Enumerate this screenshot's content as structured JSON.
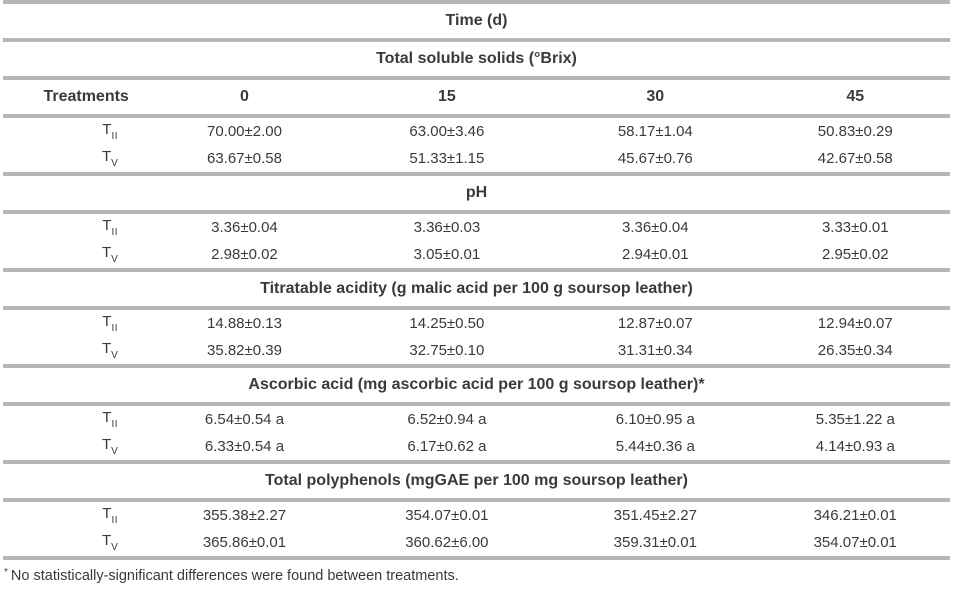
{
  "colors": {
    "rule": "#b6b6b6",
    "text": "#3a3a3a",
    "background": "#ffffff"
  },
  "table": {
    "title": "Time (d)",
    "column_headers": [
      "Treatments",
      "0",
      "15",
      "30",
      "45"
    ],
    "row_labels": [
      {
        "base": "T",
        "sub": "II"
      },
      {
        "base": "T",
        "sub": "V"
      }
    ],
    "sections": [
      {
        "header": "Total soluble solids (°Brix)",
        "rows": [
          [
            "70.00±2.00",
            "63.00±3.46",
            "58.17±1.04",
            "50.83±0.29"
          ],
          [
            "63.67±0.58",
            "51.33±1.15",
            "45.67±0.76",
            "42.67±0.58"
          ]
        ]
      },
      {
        "header": "pH",
        "rows": [
          [
            "3.36±0.04",
            "3.36±0.03",
            "3.36±0.04",
            "3.33±0.01"
          ],
          [
            "2.98±0.02",
            "3.05±0.01",
            "2.94±0.01",
            "2.95±0.02"
          ]
        ]
      },
      {
        "header": "Titratable acidity (g malic acid per 100 g soursop leather)",
        "rows": [
          [
            "14.88±0.13",
            "14.25±0.50",
            "12.87±0.07",
            "12.94±0.07"
          ],
          [
            "35.82±0.39",
            "32.75±0.10",
            "31.31±0.34",
            "26.35±0.34"
          ]
        ]
      },
      {
        "header": "Ascorbic acid (mg ascorbic acid per 100 g soursop leather)*",
        "rows": [
          [
            "6.54±0.54 a",
            "6.52±0.94 a",
            "6.10±0.95 a",
            "5.35±1.22 a"
          ],
          [
            "6.33±0.54 a",
            "6.17±0.62 a",
            "5.44±0.36 a",
            "4.14±0.93 a"
          ]
        ]
      },
      {
        "header": "Total polyphenols (mgGAE per 100 mg soursop leather)",
        "rows": [
          [
            "355.38±2.27",
            "354.07±0.01",
            "351.45±2.27",
            "346.21±0.01"
          ],
          [
            "365.86±0.01",
            "360.62±6.00",
            "359.31±0.01",
            "354.07±0.01"
          ]
        ]
      }
    ],
    "footnote": {
      "marker": "*",
      "text": "No statistically-significant differences were found between treatments."
    }
  }
}
